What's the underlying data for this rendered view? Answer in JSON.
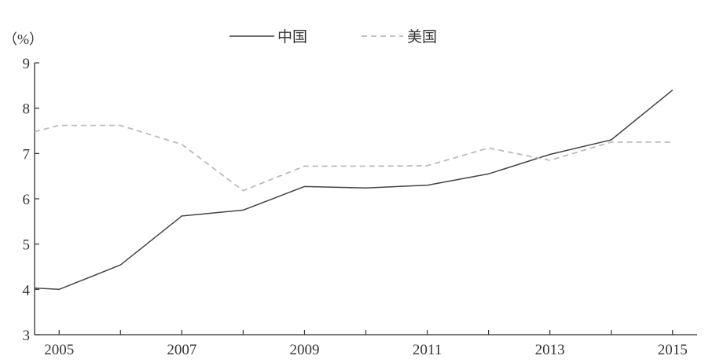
{
  "chart_data": {
    "type": "line",
    "ylabel": "（%）",
    "x": [
      2004.6,
      2005,
      2006,
      2007,
      2008,
      2009,
      2010,
      2011,
      2012,
      2013,
      2014,
      2015
    ],
    "xticks": [
      2005,
      2007,
      2009,
      2011,
      2013,
      2015
    ],
    "xlim": [
      2004.6,
      2015.4
    ],
    "yticks": [
      3,
      4,
      5,
      6,
      7,
      8,
      9
    ],
    "ylim": [
      3,
      9
    ],
    "legend_position": "top-center",
    "series": [
      {
        "name": "中国",
        "color": "#444444",
        "style": "solid",
        "values": [
          4.03,
          4.0,
          4.54,
          5.62,
          5.75,
          6.27,
          6.24,
          6.3,
          6.55,
          6.98,
          7.3,
          8.4
        ]
      },
      {
        "name": "美国",
        "color": "#bbbbbb",
        "style": "dashed",
        "values": [
          7.48,
          7.62,
          7.62,
          7.2,
          6.18,
          6.72,
          6.72,
          6.73,
          7.12,
          6.85,
          7.25,
          7.25
        ]
      }
    ]
  }
}
